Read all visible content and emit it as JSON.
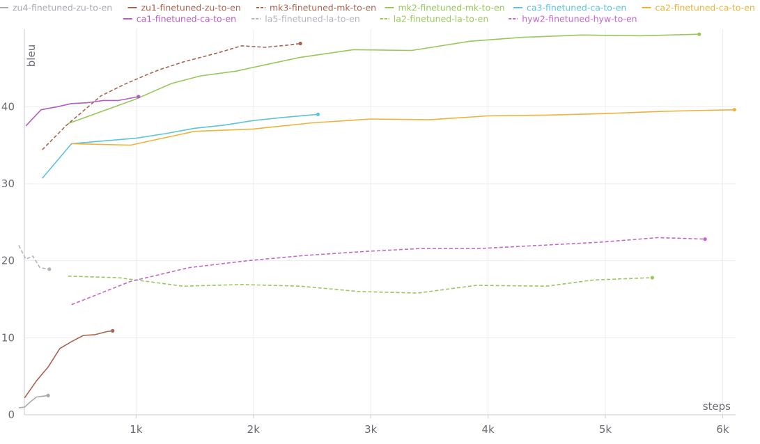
{
  "chart_data": {
    "type": "line",
    "xlabel": "steps",
    "ylabel": "bleu",
    "xlim": [
      0,
      6100
    ],
    "ylim": [
      0,
      49.6
    ],
    "x_ticks": [
      {
        "value": 1000,
        "label": "1k"
      },
      {
        "value": 2000,
        "label": "2k"
      },
      {
        "value": 3000,
        "label": "3k"
      },
      {
        "value": 4000,
        "label": "4k"
      },
      {
        "value": 5000,
        "label": "5k"
      },
      {
        "value": 6000,
        "label": "6k"
      }
    ],
    "y_ticks": [
      {
        "value": 0,
        "label": "0"
      },
      {
        "value": 10,
        "label": "10"
      },
      {
        "value": 20,
        "label": "20"
      },
      {
        "value": 30,
        "label": "30"
      },
      {
        "value": 40,
        "label": "40"
      }
    ],
    "grid": true,
    "legend_position": "top",
    "series": [
      {
        "name": "zu4-finetuned-zu-to-en",
        "color": "#a6a9b2",
        "dash": false,
        "x": [
          0,
          50,
          100,
          150,
          200,
          250
        ],
        "y": [
          0.9,
          1.0,
          1.7,
          2.3,
          2.4,
          2.5
        ]
      },
      {
        "name": "zu1-finetuned-zu-to-en",
        "color": "#a8624f",
        "dash": false,
        "x": [
          50,
          150,
          250,
          350,
          450,
          550,
          650,
          750,
          800
        ],
        "y": [
          2.2,
          4.4,
          6.2,
          8.6,
          9.5,
          10.3,
          10.4,
          10.8,
          10.9
        ]
      },
      {
        "name": "mk3-finetuned-mk-to-en",
        "color": "#a8624f",
        "dash": true,
        "x": [
          200,
          400,
          700,
          900,
          1100,
          1200,
          1400,
          1700,
          1900,
          2100,
          2300,
          2400
        ],
        "y": [
          34.4,
          37.5,
          41.4,
          42.9,
          44.2,
          44.8,
          45.8,
          47.0,
          47.9,
          47.7,
          48.0,
          48.2
        ]
      },
      {
        "name": "mk2-finetuned-mk-to-en",
        "color": "#98c75a",
        "dash": false,
        "x": [
          420,
          1000,
          1300,
          1550,
          1850,
          2150,
          2400,
          2850,
          3350,
          3850,
          4300,
          4800,
          5300,
          5800
        ],
        "y": [
          37.8,
          41.0,
          43.0,
          44.0,
          44.6,
          45.6,
          46.4,
          47.4,
          47.3,
          48.5,
          49.0,
          49.3,
          49.2,
          49.4
        ]
      },
      {
        "name": "ca3-finetuned-ca-to-en",
        "color": "#5bc4d9",
        "dash": false,
        "x": [
          200,
          450,
          1000,
          1250,
          1500,
          1750,
          2000,
          2250,
          2550
        ],
        "y": [
          30.7,
          35.2,
          35.9,
          36.5,
          37.2,
          37.6,
          38.2,
          38.6,
          39.0
        ]
      },
      {
        "name": "ca2-finetuned-ca-to-en",
        "color": "#eeb23a",
        "dash": false,
        "x": [
          450,
          950,
          1500,
          2000,
          2500,
          3000,
          3500,
          4000,
          4500,
          5000,
          5500,
          6100
        ],
        "y": [
          35.2,
          35.0,
          36.8,
          37.1,
          37.9,
          38.4,
          38.3,
          38.8,
          38.9,
          39.1,
          39.4,
          39.6
        ]
      },
      {
        "name": "ca1-finetuned-ca-to-en",
        "color": "#b45cc2",
        "dash": false,
        "x": [
          60,
          190,
          330,
          450,
          580,
          720,
          850,
          1020
        ],
        "y": [
          37.5,
          39.6,
          40.0,
          40.4,
          40.5,
          40.8,
          40.8,
          41.3
        ]
      },
      {
        "name": "la5-finetuned-la-to-en",
        "color": "#b0b3bb",
        "dash": true,
        "x": [
          0,
          60,
          120,
          180,
          260
        ],
        "y": [
          22.0,
          20.2,
          20.6,
          19.1,
          18.9
        ]
      },
      {
        "name": "la2-finetuned-la-to-en",
        "color": "#98c75a",
        "dash": true,
        "x": [
          420,
          850,
          1400,
          1900,
          2400,
          2900,
          3400,
          3900,
          4500,
          4900,
          5400
        ],
        "y": [
          18.0,
          17.8,
          16.7,
          16.9,
          16.7,
          16.0,
          15.8,
          16.8,
          16.7,
          17.5,
          17.8
        ]
      },
      {
        "name": "hyw2-finetuned-hyw-to-en",
        "color": "#c466cc",
        "dash": true,
        "x": [
          450,
          950,
          1450,
          1950,
          2450,
          2950,
          3450,
          3950,
          4450,
          4950,
          5450,
          5850
        ],
        "y": [
          14.3,
          17.3,
          19.1,
          20.0,
          20.7,
          21.2,
          21.6,
          21.6,
          22.0,
          22.4,
          23.0,
          22.8
        ]
      }
    ]
  }
}
